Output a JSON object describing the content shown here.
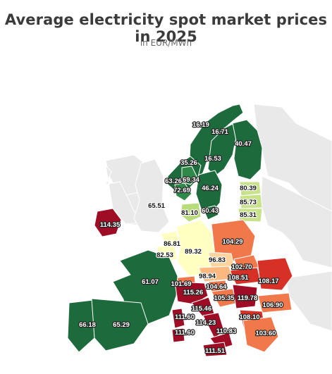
{
  "header": {
    "title": "Average electricity spot market prices in 2025",
    "subtitle": "in EUR/MWh"
  },
  "colors": {
    "low": "#1d6b3c",
    "light_green": "#c8e28a",
    "neutral": "#ffffc2",
    "orange": "#f1784a",
    "red": "#d73027",
    "dark_red": "#9e0c25",
    "no_data": "#e9e9e9",
    "borders": "#ffffff"
  },
  "map": {
    "zones": [
      {
        "label": "16.19",
        "fill": "#1d6b3c"
      },
      {
        "label": "16.71",
        "fill": "#1d6b3c"
      },
      {
        "label": "40.47",
        "fill": "#1d6b3c"
      },
      {
        "label": "16.53",
        "fill": "#1d6b3c"
      },
      {
        "label": "35.26",
        "fill": "#1d6b3c"
      },
      {
        "label": "69.34",
        "fill": "#2f8a4a"
      },
      {
        "label": "63.26",
        "fill": "#1d6b3c"
      },
      {
        "label": "72.69",
        "fill": "#2f8a4a"
      },
      {
        "label": "46.24",
        "fill": "#1d6b3c"
      },
      {
        "label": "80.39",
        "fill": "#c8e28a"
      },
      {
        "label": "85.73",
        "fill": "#c8e28a"
      },
      {
        "label": "85.31",
        "fill": "#c8e28a"
      },
      {
        "label": "65.51",
        "fill": "#e9e9e9"
      },
      {
        "label": "81.10",
        "fill": "#b9dc7a"
      },
      {
        "label": "60.43",
        "fill": "#1d6b3c"
      },
      {
        "label": "114.35",
        "fill": "#9e0c25"
      },
      {
        "label": "86.81",
        "fill": "#ffffc2"
      },
      {
        "label": "82.53",
        "fill": "#ffffc2"
      },
      {
        "label": "89.32",
        "fill": "#ffffc2"
      },
      {
        "label": "104.29",
        "fill": "#f1784a"
      },
      {
        "label": "96.83",
        "fill": "#fdd49e"
      },
      {
        "label": "102.70",
        "fill": "#f1784a"
      },
      {
        "label": "108.51",
        "fill": "#d73027"
      },
      {
        "label": "108.17",
        "fill": "#d73027"
      },
      {
        "label": "98.94",
        "fill": "#fdb880"
      },
      {
        "label": "101.69",
        "fill": "#f1784a"
      },
      {
        "label": "104.64",
        "fill": "#f1784a"
      },
      {
        "label": "61.07",
        "fill": "#1d6b3c"
      },
      {
        "label": "115.26",
        "fill": "#9e0c25"
      },
      {
        "label": "115.46",
        "fill": "#9e0c25"
      },
      {
        "label": "105.35",
        "fill": "#f1784a"
      },
      {
        "label": "119.78",
        "fill": "#9e0c25"
      },
      {
        "label": "106.90",
        "fill": "#f1784a"
      },
      {
        "label": "108.10",
        "fill": "#d73027"
      },
      {
        "label": "111.60",
        "fill": "#9e0c25"
      },
      {
        "label": "114.23",
        "fill": "#9e0c25"
      },
      {
        "label": "110.83",
        "fill": "#9e0c25"
      },
      {
        "label": "111.60",
        "fill": "#9e0c25"
      },
      {
        "label": "66.18",
        "fill": "#1d6b3c"
      },
      {
        "label": "65.29",
        "fill": "#1d6b3c"
      },
      {
        "label": "103.60",
        "fill": "#f1784a"
      },
      {
        "label": "111.51",
        "fill": "#9e0c25"
      }
    ]
  }
}
